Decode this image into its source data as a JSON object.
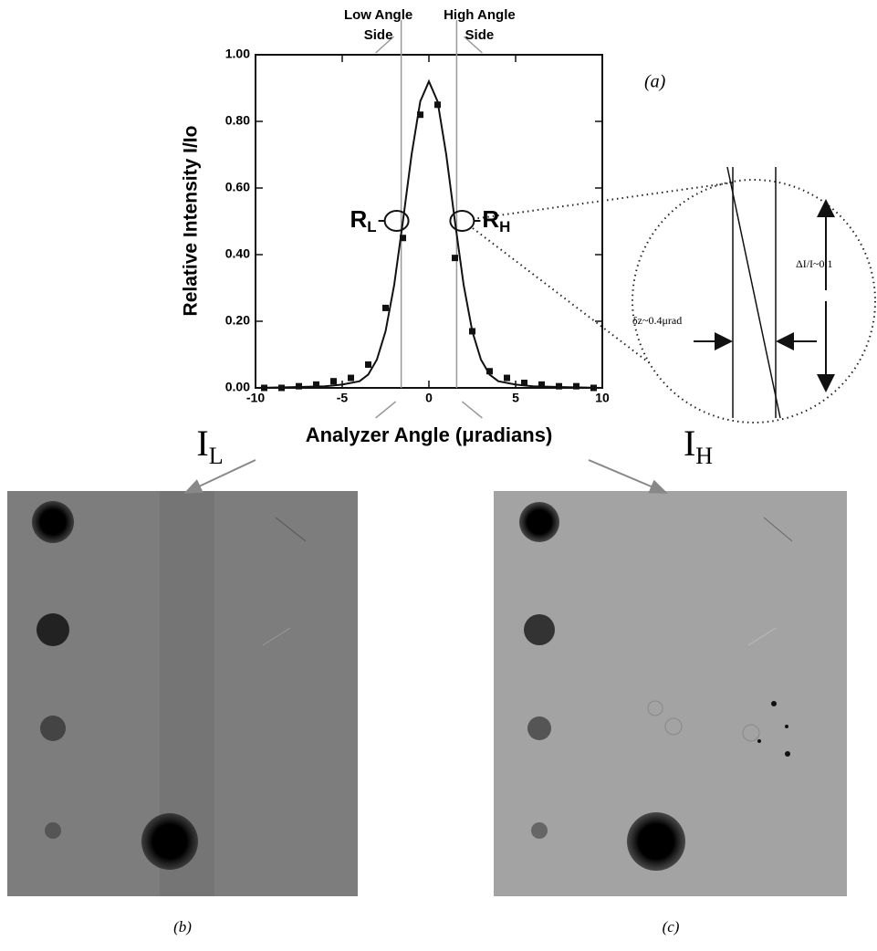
{
  "chart_data": {
    "type": "scatter-fit",
    "panel_label": "(a)",
    "x_label": "Analyzer Angle (μradians)",
    "y_label": "Relative Intensity   I/Io",
    "xlim": [
      -10,
      10
    ],
    "ylim": [
      0,
      1
    ],
    "xticks": [
      -10,
      -5,
      0,
      5,
      10
    ],
    "yticks": [
      {
        "value": 0,
        "label": "0.00"
      },
      {
        "value": 0.2,
        "label": "0.20"
      },
      {
        "value": 0.4,
        "label": "0.40"
      },
      {
        "value": 0.6,
        "label": "0.60"
      },
      {
        "value": 0.8,
        "label": "0.80"
      },
      {
        "value": 1,
        "label": "1.00"
      }
    ],
    "series": [
      {
        "style": "points",
        "color": "#111111",
        "x": [
          -9.5,
          -8.5,
          -7.5,
          -6.5,
          -5.5,
          -4.5,
          -3.5,
          -2.5,
          -1.5,
          -0.5,
          0.5,
          1.5,
          2.5,
          3.5,
          4.5,
          5.5,
          6.5,
          7.5,
          8.5,
          9.5
        ],
        "values": [
          0,
          0,
          0.005,
          0.01,
          0.02,
          0.03,
          0.07,
          0.24,
          0.45,
          0.82,
          0.85,
          0.39,
          0.17,
          0.05,
          0.03,
          0.015,
          0.01,
          0.005,
          0.005,
          0
        ]
      },
      {
        "style": "line",
        "color": "#111111",
        "x": [
          -10,
          -8,
          -6,
          -5,
          -4,
          -3.5,
          -3,
          -2.5,
          -2,
          -1.5,
          -1,
          -0.5,
          0,
          0.5,
          1,
          1.5,
          2,
          2.5,
          3,
          3.5,
          4,
          5,
          6,
          8,
          10
        ],
        "values": [
          0,
          0.002,
          0.005,
          0.01,
          0.02,
          0.04,
          0.085,
          0.17,
          0.31,
          0.5,
          0.7,
          0.86,
          0.92,
          0.86,
          0.7,
          0.5,
          0.31,
          0.17,
          0.085,
          0.04,
          0.02,
          0.01,
          0.005,
          0.002,
          0
        ]
      }
    ],
    "markers": [
      {
        "x": -1.6,
        "label": [
          "Low Angle",
          "Side"
        ],
        "point": {
          "main": "R",
          "sub": "L"
        }
      },
      {
        "x": 1.6,
        "label": [
          "High Angle",
          "Side"
        ],
        "point": {
          "main": "R",
          "sub": "H"
        }
      }
    ],
    "inset": {
      "delta_i": "ΔI/I~0.1",
      "delta_z": "δz~0.4μrad"
    }
  },
  "figure": {
    "images": [
      {
        "title": {
          "main": "I",
          "sub": "L"
        },
        "caption": "(b)"
      },
      {
        "title": {
          "main": "I",
          "sub": "H"
        },
        "caption": "(c)"
      }
    ]
  }
}
